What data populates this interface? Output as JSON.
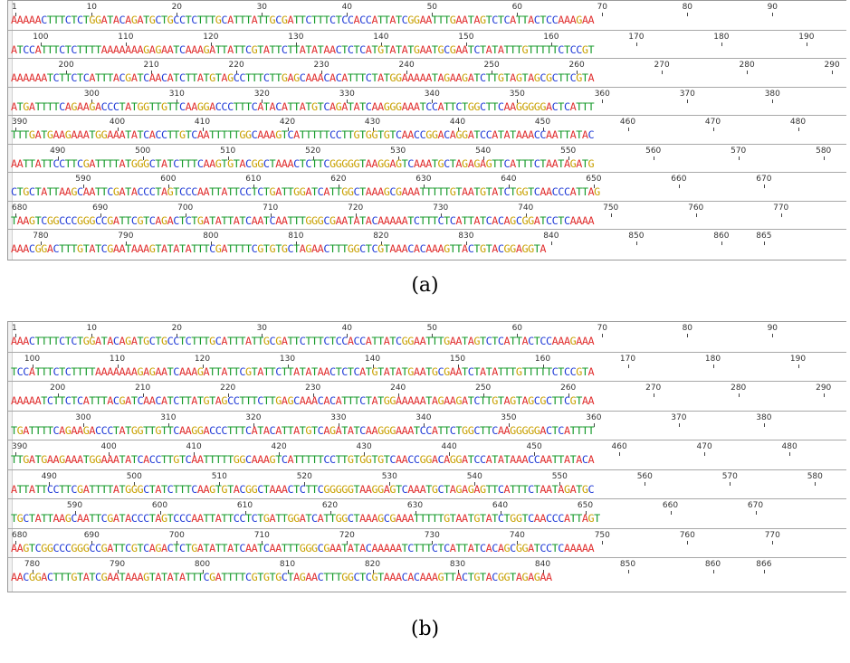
{
  "colors": {
    "A": "#e03030",
    "C": "#1f3ad6",
    "G": "#c8a000",
    "T": "#159a2a"
  },
  "panels": [
    {
      "id": "a",
      "caption": "(a)",
      "rows": [
        {
          "ticks": [
            {
              "label": "1",
              "col": 0
            },
            {
              "label": "10",
              "col": 9
            },
            {
              "label": "20",
              "col": 19
            },
            {
              "label": "30",
              "col": 29
            },
            {
              "label": "40",
              "col": 39
            },
            {
              "label": "50",
              "col": 49
            },
            {
              "label": "60",
              "col": 59
            },
            {
              "label": "70",
              "col": 69
            },
            {
              "label": "80",
              "col": 79
            },
            {
              "label": "90",
              "col": 89
            }
          ],
          "seq": "AAAAACTTTCTCTGGATACAGATGCTGCCTCTTTGCATTTATTGCGATTCTTTCTCCACCATTATCGGAATTTGAATAGTCTCATTACTCCAAAGAA"
        },
        {
          "ticks": [
            {
              "label": "100",
              "col": 3
            },
            {
              "label": "110",
              "col": 13
            },
            {
              "label": "120",
              "col": 23
            },
            {
              "label": "130",
              "col": 33
            },
            {
              "label": "140",
              "col": 43
            },
            {
              "label": "150",
              "col": 53
            },
            {
              "label": "160",
              "col": 63
            },
            {
              "label": "170",
              "col": 73
            },
            {
              "label": "180",
              "col": 83
            },
            {
              "label": "190",
              "col": 93
            }
          ],
          "seq": "ATCCATTTCTCTTTTAAAAAAAGAGAATCAAAGATTATTCGTATTCTTATATAACTCTCATGTATATGAATGCGAATCTATATTTGTTTTTCTCCGT"
        },
        {
          "ticks": [
            {
              "label": "200",
              "col": 6
            },
            {
              "label": "210",
              "col": 16
            },
            {
              "label": "220",
              "col": 26
            },
            {
              "label": "230",
              "col": 36
            },
            {
              "label": "240",
              "col": 46
            },
            {
              "label": "250",
              "col": 56
            },
            {
              "label": "260",
              "col": 66
            },
            {
              "label": "270",
              "col": 76
            },
            {
              "label": "280",
              "col": 86
            },
            {
              "label": "290",
              "col": 96
            }
          ],
          "seq": "AAAAAATCTTCTCATTTACGATCAACATCTTATGTAGCCTTTCTTGAGCAAACACATTTCTATGGAAAAATAGAAGATCTTGTAGTAGCGCTTCGTA"
        },
        {
          "ticks": [
            {
              "label": "300",
              "col": 9
            },
            {
              "label": "310",
              "col": 19
            },
            {
              "label": "320",
              "col": 29
            },
            {
              "label": "330",
              "col": 39
            },
            {
              "label": "340",
              "col": 49
            },
            {
              "label": "350",
              "col": 59
            },
            {
              "label": "360",
              "col": 69
            },
            {
              "label": "370",
              "col": 79
            },
            {
              "label": "380",
              "col": 89
            }
          ],
          "seq": "ATGATTTTCAGAAGACCCTATGGTTGTTCAAGGACCCTTTCATACATTATGTCAGATATCAAGGGAAATCCATTCTGGCTTCAAGGGGGACTCATTT"
        },
        {
          "ticks": [
            {
              "label": "390",
              "col": 0
            },
            {
              "label": "400",
              "col": 12
            },
            {
              "label": "410",
              "col": 22
            },
            {
              "label": "420",
              "col": 32
            },
            {
              "label": "430",
              "col": 42
            },
            {
              "label": "440",
              "col": 52
            },
            {
              "label": "450",
              "col": 62
            },
            {
              "label": "460",
              "col": 72
            },
            {
              "label": "470",
              "col": 82
            },
            {
              "label": "480",
              "col": 92
            }
          ],
          "seq": "TTTGATGAAGAAATGGAAATATCACCTTGTCAATTTTTGGCAAAGTCATTTTTCCTTGTGGTGTCAACCGGACAGGATCCATATAAACCAATTATAC"
        },
        {
          "ticks": [
            {
              "label": "490",
              "col": 5
            },
            {
              "label": "500",
              "col": 15
            },
            {
              "label": "510",
              "col": 25
            },
            {
              "label": "520",
              "col": 35
            },
            {
              "label": "530",
              "col": 45
            },
            {
              "label": "540",
              "col": 55
            },
            {
              "label": "550",
              "col": 65
            },
            {
              "label": "560",
              "col": 75
            },
            {
              "label": "570",
              "col": 85
            },
            {
              "label": "580",
              "col": 95
            }
          ],
          "seq": "AATTATTCCTTCGATTTTATGGGCTATCTTTCAAGTGTACGGCTAAACTCTTCGGGGGTAAGGAGTCAAATGCTAGAGAGTTCATTTCTAATAGATG"
        },
        {
          "ticks": [
            {
              "label": "590",
              "col": 8
            },
            {
              "label": "600",
              "col": 18
            },
            {
              "label": "610",
              "col": 28
            },
            {
              "label": "620",
              "col": 38
            },
            {
              "label": "630",
              "col": 48
            },
            {
              "label": "640",
              "col": 58
            },
            {
              "label": "650",
              "col": 68
            },
            {
              "label": "660",
              "col": 78
            },
            {
              "label": "670",
              "col": 88
            }
          ],
          "seq": "CTGCTATTAAGCAATTCGATACCCTAGTCCCAATTATTCCTCTGATTGGATCATTGGCTAAAGCGAAATTTTTGTAATGTATCTGGTCAACCCATTAG"
        },
        {
          "ticks": [
            {
              "label": "680",
              "col": 0
            },
            {
              "label": "690",
              "col": 10
            },
            {
              "label": "700",
              "col": 20
            },
            {
              "label": "710",
              "col": 30
            },
            {
              "label": "720",
              "col": 40
            },
            {
              "label": "730",
              "col": 50
            },
            {
              "label": "740",
              "col": 60
            },
            {
              "label": "750",
              "col": 70
            },
            {
              "label": "760",
              "col": 80
            },
            {
              "label": "770",
              "col": 90
            }
          ],
          "seq": "TAAGTCGGCCCGGGCCGATTCGTCAGACTCTGATATTATCAATCAATTTGGGCGAATATACAAAAATCTTTCTCATTATCACAGCGGATCCTCAAAA"
        },
        {
          "ticks": [
            {
              "label": "780",
              "col": 3
            },
            {
              "label": "790",
              "col": 13
            },
            {
              "label": "800",
              "col": 23
            },
            {
              "label": "810",
              "col": 33
            },
            {
              "label": "820",
              "col": 43
            },
            {
              "label": "830",
              "col": 53
            },
            {
              "label": "840",
              "col": 63
            },
            {
              "label": "850",
              "col": 73
            },
            {
              "label": "860",
              "col": 83
            },
            {
              "label": "865",
              "col": 88
            }
          ],
          "seq": "AAACGGACTTTGTATCGAATAAAGTATATATTTCGATTTTCGTGTGCTAGAACTTTGGCTCGTAAACACAAAGTTACTGTACGGAGGTA"
        }
      ]
    },
    {
      "id": "b",
      "caption": "(b)",
      "rows": [
        {
          "ticks": [
            {
              "label": "1",
              "col": 0
            },
            {
              "label": "10",
              "col": 9
            },
            {
              "label": "20",
              "col": 19
            },
            {
              "label": "30",
              "col": 29
            },
            {
              "label": "40",
              "col": 39
            },
            {
              "label": "50",
              "col": 49
            },
            {
              "label": "60",
              "col": 59
            },
            {
              "label": "70",
              "col": 69
            },
            {
              "label": "80",
              "col": 79
            },
            {
              "label": "90",
              "col": 89
            }
          ],
          "seq": "AAACTTTTCTCTGGATACAGATGCTGCCTCTTTGCATTTATTGCGATTCTTTCTCCACCATTATCGGAATTTGAATAGTCTCATTACTCCAAAGAAA"
        },
        {
          "ticks": [
            {
              "label": "100",
              "col": 2
            },
            {
              "label": "110",
              "col": 12
            },
            {
              "label": "120",
              "col": 22
            },
            {
              "label": "130",
              "col": 32
            },
            {
              "label": "140",
              "col": 42
            },
            {
              "label": "150",
              "col": 52
            },
            {
              "label": "160",
              "col": 62
            },
            {
              "label": "170",
              "col": 72
            },
            {
              "label": "180",
              "col": 82
            },
            {
              "label": "190",
              "col": 92
            }
          ],
          "seq": "TCCATTTCTCTTTTAAAAAAAGAGAATCAAAGATTATTCGTATTCTTATATAACTCTCATGTATATGAATGCGAATCTATATTTGTTTTTCTCCGTA"
        },
        {
          "ticks": [
            {
              "label": "200",
              "col": 5
            },
            {
              "label": "210",
              "col": 15
            },
            {
              "label": "220",
              "col": 25
            },
            {
              "label": "230",
              "col": 35
            },
            {
              "label": "240",
              "col": 45
            },
            {
              "label": "250",
              "col": 55
            },
            {
              "label": "260",
              "col": 65
            },
            {
              "label": "270",
              "col": 75
            },
            {
              "label": "280",
              "col": 85
            },
            {
              "label": "290",
              "col": 95
            }
          ],
          "seq": "AAAAATCTTCTCATTTACGATCAACATCTTATGTAGCCTTTCTTGAGCAAACACATTTCTATGGAAAAATAGAAGATCTTGTAGTAGCGCTTCGTAA"
        },
        {
          "ticks": [
            {
              "label": "300",
              "col": 8
            },
            {
              "label": "310",
              "col": 18
            },
            {
              "label": "320",
              "col": 28
            },
            {
              "label": "330",
              "col": 38
            },
            {
              "label": "340",
              "col": 48
            },
            {
              "label": "350",
              "col": 58
            },
            {
              "label": "360",
              "col": 68
            },
            {
              "label": "370",
              "col": 78
            },
            {
              "label": "380",
              "col": 88
            }
          ],
          "seq": "TGATTTTCAGAAGACCCTATGGTTGTTCAAGGACCCTTTCATACATTATGTCAGATATCAAGGGAAATCCATTCTGGCTTCAAGGGGGACTCATTTT"
        },
        {
          "ticks": [
            {
              "label": "390",
              "col": 0
            },
            {
              "label": "400",
              "col": 11
            },
            {
              "label": "410",
              "col": 21
            },
            {
              "label": "420",
              "col": 31
            },
            {
              "label": "430",
              "col": 41
            },
            {
              "label": "440",
              "col": 51
            },
            {
              "label": "450",
              "col": 61
            },
            {
              "label": "460",
              "col": 71
            },
            {
              "label": "470",
              "col": 81
            },
            {
              "label": "480",
              "col": 91
            }
          ],
          "seq": "TTGATGAAGAAATGGAAATATCACCTTGTCAATTTTTGGCAAAGTCATTTTTCCTTGTGGTGTCAACCGGACAGGATCCATATAAACCAATTATACA"
        },
        {
          "ticks": [
            {
              "label": "490",
              "col": 4
            },
            {
              "label": "500",
              "col": 14
            },
            {
              "label": "510",
              "col": 24
            },
            {
              "label": "520",
              "col": 34
            },
            {
              "label": "530",
              "col": 44
            },
            {
              "label": "540",
              "col": 54
            },
            {
              "label": "550",
              "col": 64
            },
            {
              "label": "560",
              "col": 74
            },
            {
              "label": "570",
              "col": 84
            },
            {
              "label": "580",
              "col": 94
            }
          ],
          "seq": "ATTATTCCTTCGATTTTATGGGCTATCTTTCAAGTGTACGGCTAAACTCTTCGGGGGTAAGGAGTCAAATGCTAGAGAGTTCATTTCTAATAGATGC"
        },
        {
          "ticks": [
            {
              "label": "590",
              "col": 7
            },
            {
              "label": "600",
              "col": 17
            },
            {
              "label": "610",
              "col": 27
            },
            {
              "label": "620",
              "col": 37
            },
            {
              "label": "630",
              "col": 47
            },
            {
              "label": "640",
              "col": 57
            },
            {
              "label": "650",
              "col": 67
            },
            {
              "label": "660",
              "col": 77
            },
            {
              "label": "670",
              "col": 87
            }
          ],
          "seq": "TGCTATTAAGCAATTCGATACCCTAGTCCCAATTATTCCTCTGATTGGATCATTGGCTAAAGCGAAATTTTTGTAATGTATCTGGTCAACCCATTAGT"
        },
        {
          "ticks": [
            {
              "label": "680",
              "col": 0
            },
            {
              "label": "690",
              "col": 9
            },
            {
              "label": "700",
              "col": 19
            },
            {
              "label": "710",
              "col": 29
            },
            {
              "label": "720",
              "col": 39
            },
            {
              "label": "730",
              "col": 49
            },
            {
              "label": "740",
              "col": 59
            },
            {
              "label": "750",
              "col": 69
            },
            {
              "label": "760",
              "col": 79
            },
            {
              "label": "770",
              "col": 89
            }
          ],
          "seq": "AAGTCGGCCCGGGCCGATTCGTCAGACTCTGATATTATCAATCAATTTGGGCGAATATACAAAAATCTTTCTCATTATCACAGCGGATCCTCAAAAA"
        },
        {
          "ticks": [
            {
              "label": "780",
              "col": 2
            },
            {
              "label": "790",
              "col": 12
            },
            {
              "label": "800",
              "col": 22
            },
            {
              "label": "810",
              "col": 32
            },
            {
              "label": "820",
              "col": 42
            },
            {
              "label": "830",
              "col": 52
            },
            {
              "label": "840",
              "col": 62
            },
            {
              "label": "850",
              "col": 72
            },
            {
              "label": "860",
              "col": 82
            },
            {
              "label": "866",
              "col": 88
            }
          ],
          "seq": "AACGGACTTTGTATCGAATAAAGTATATATTTCGATTTTCGTGTGCTAGAACTTTGGCTCGTAAACACAAAGTTACTGTACGGTAGAGAA"
        }
      ]
    }
  ]
}
